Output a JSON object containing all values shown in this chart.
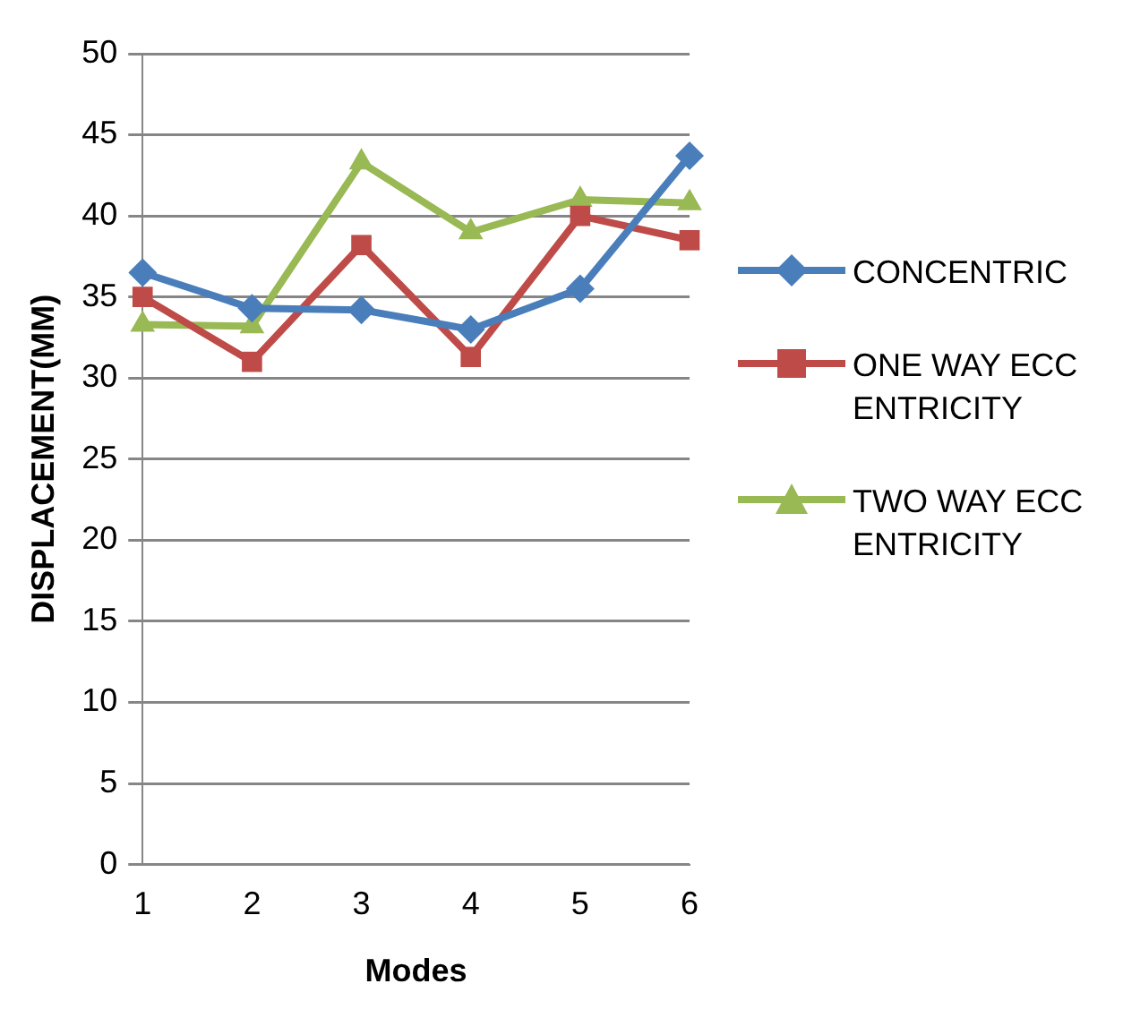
{
  "chart_data": {
    "type": "line",
    "xlabel": "Modes",
    "ylabel": "DISPLACEMENT(MM)",
    "categories": [
      "1",
      "2",
      "3",
      "4",
      "5",
      "6"
    ],
    "series": [
      {
        "name": "CONCENTRIC",
        "color": "#4a7ebb",
        "marker": "diamond",
        "values": [
          36.5,
          34.3,
          34.2,
          33,
          35.5,
          43.7
        ]
      },
      {
        "name": "ONE WAY ECCENTRICITY",
        "color": "#be4b48",
        "marker": "square",
        "values": [
          35,
          31,
          38.2,
          31.3,
          40,
          38.5
        ]
      },
      {
        "name": "TWO WAY ECCENTRICITY",
        "color": "#98b954",
        "marker": "triangle",
        "values": [
          33.3,
          33.2,
          43.3,
          39,
          41,
          40.8
        ]
      }
    ],
    "ylim": [
      0,
      50
    ],
    "yticks": [
      0,
      5,
      10,
      15,
      20,
      25,
      30,
      35,
      40,
      45,
      50
    ],
    "grid": "y",
    "legend": "right"
  }
}
